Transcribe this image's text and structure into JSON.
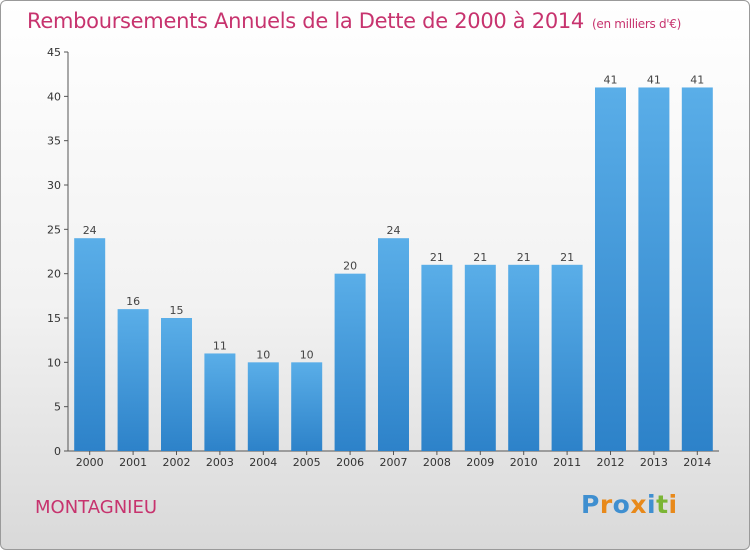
{
  "chart": {
    "title": "Remboursements Annuels de la Dette de 2000 à 2014",
    "unit": "(en milliers d'€)",
    "commune": "MONTAGNIEU",
    "logo_text": "Proxiti"
  },
  "colors": {
    "title": "#c7336e",
    "bar_light": "#5aaee8",
    "bar_dark": "#2d82c9"
  },
  "chart_data": {
    "type": "bar",
    "categories": [
      "2000",
      "2001",
      "2002",
      "2003",
      "2004",
      "2005",
      "2006",
      "2007",
      "2008",
      "2009",
      "2010",
      "2011",
      "2012",
      "2013",
      "2014"
    ],
    "values": [
      24,
      16,
      15,
      11,
      10,
      10,
      20,
      24,
      21,
      21,
      21,
      21,
      41,
      41,
      41
    ],
    "title": "Remboursements Annuels de la Dette de 2000 à 2014",
    "ylim": [
      0,
      45
    ],
    "yticks": [
      0,
      5,
      10,
      15,
      20,
      25,
      30,
      35,
      40,
      45
    ],
    "grid": false,
    "legend": "none"
  }
}
